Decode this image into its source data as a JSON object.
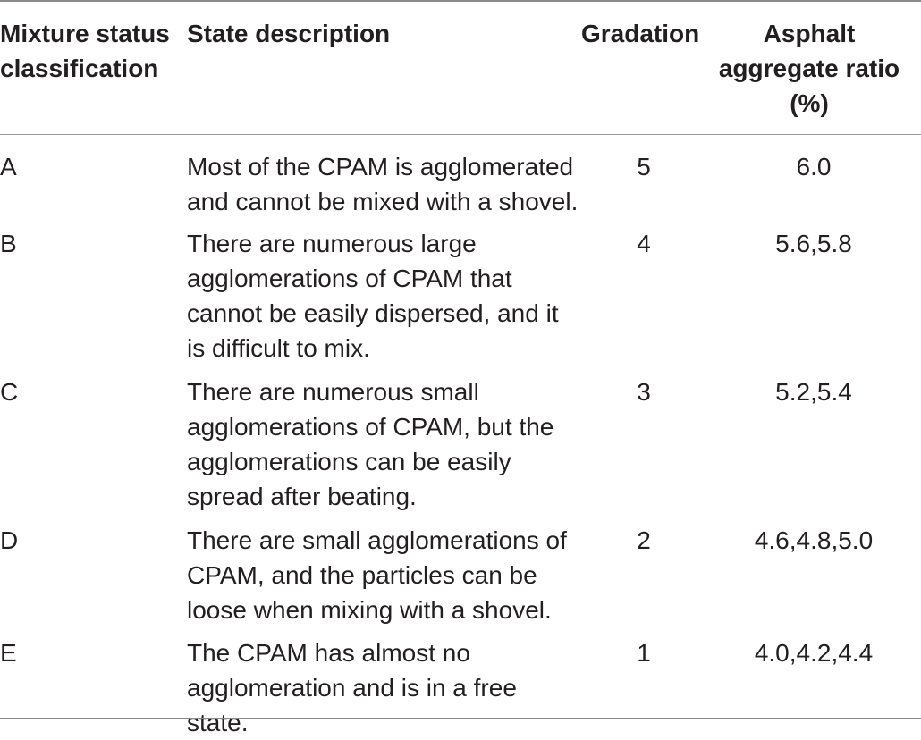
{
  "table": {
    "headers": {
      "classification": "Mixture status classification",
      "description": "State description",
      "gradation": "Gradation",
      "ratio": "Asphalt aggregate ratio (%)"
    },
    "rows": [
      {
        "classification": "A",
        "description": "Most of the CPAM is agglomerated and cannot be mixed with a shovel.",
        "gradation": "5",
        "ratio": "6.0"
      },
      {
        "classification": "B",
        "description": "There are numerous large agglomerations of CPAM that cannot be easily dispersed, and it is difficult to mix.",
        "gradation": "4",
        "ratio": "5.6,5.8"
      },
      {
        "classification": "C",
        "description": "There are numerous small agglomerations of CPAM, but the agglomerations can be easily spread after beating.",
        "gradation": "3",
        "ratio": "5.2,5.4"
      },
      {
        "classification": "D",
        "description": "There are small agglomerations of CPAM, and the particles can be loose when mixing with a shovel.",
        "gradation": "2",
        "ratio": "4.6,4.8,5.0"
      },
      {
        "classification": "E",
        "description": "The CPAM has almost no agglomeration and is in a free state.",
        "gradation": "1",
        "ratio": "4.0,4.2,4.4"
      }
    ]
  }
}
